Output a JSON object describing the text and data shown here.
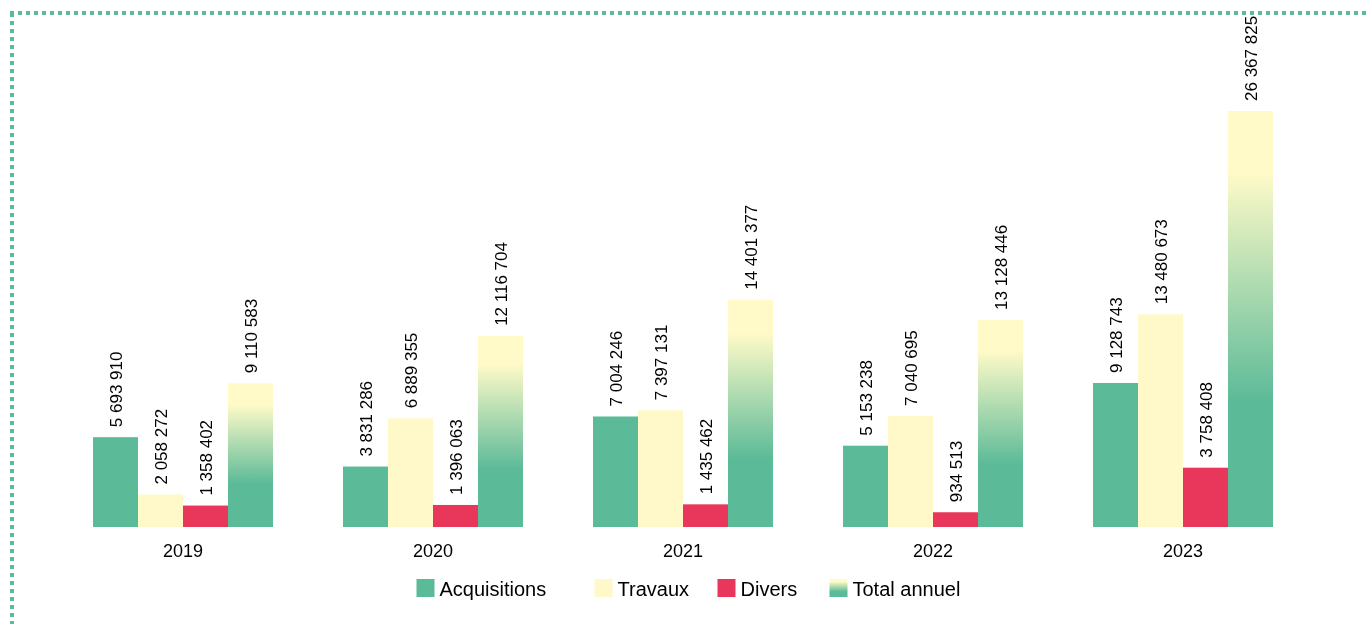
{
  "chart_data": {
    "type": "bar",
    "categories": [
      "2019",
      "2020",
      "2021",
      "2022",
      "2023"
    ],
    "series": [
      {
        "name": "Acquisitions",
        "color": "#5bba98",
        "values": [
          5693910,
          3831286,
          7004246,
          5153238,
          9128743
        ]
      },
      {
        "name": "Travaux",
        "color": "#fff8c8",
        "values": [
          2058272,
          6889355,
          7397131,
          7040695,
          13480673
        ]
      },
      {
        "name": "Divers",
        "color": "#e8375a",
        "values": [
          1358402,
          1396063,
          1435462,
          934513,
          3758408
        ]
      },
      {
        "name": "Total annuel",
        "color": "#5bba98",
        "values": [
          9110583,
          12116704,
          14401377,
          13128446,
          26367825
        ]
      }
    ],
    "data_labels": true,
    "legend": "bottom"
  }
}
